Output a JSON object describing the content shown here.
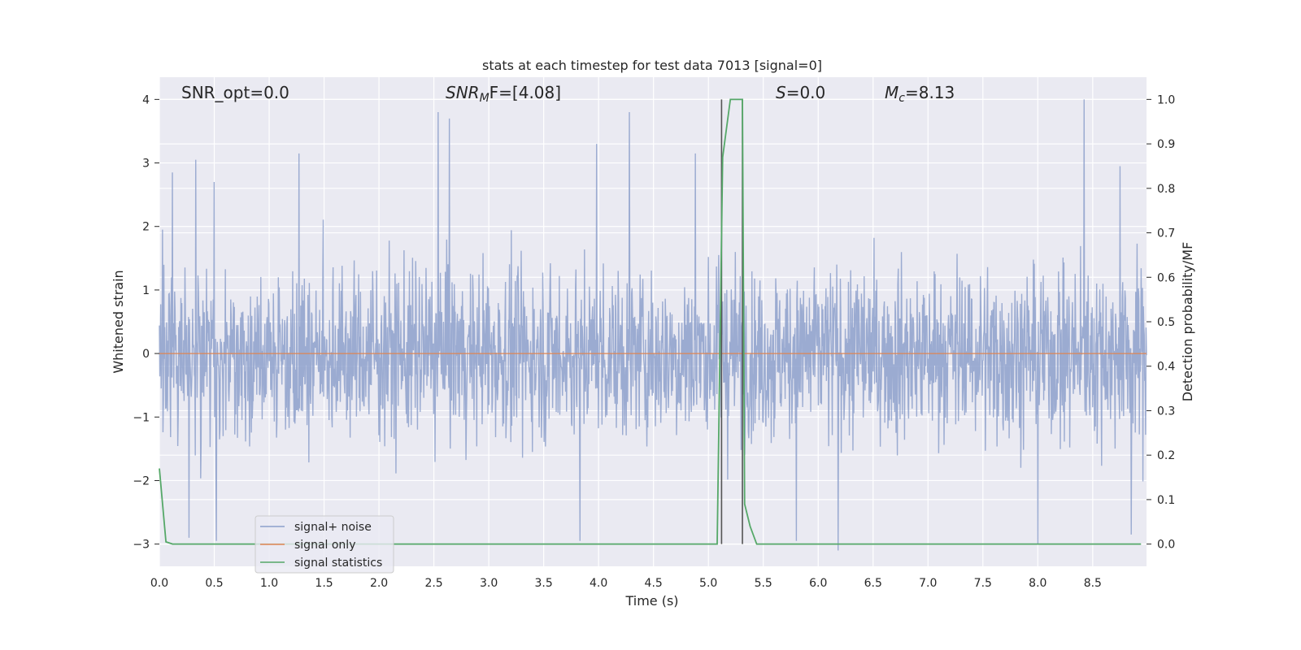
{
  "chart_data": {
    "type": "line",
    "title": "stats at each timestep for test data 7013 [signal=0]",
    "xlabel": "Time (s)",
    "ylabel_left": "Whitened strain",
    "ylabel_right": "Detection probability/MF",
    "xlim": [
      0.0,
      8.99
    ],
    "ylim_left": [
      -3.35,
      4.35
    ],
    "ylim_right": [
      -0.05,
      1.05
    ],
    "x_ticks": [
      "0.0",
      "0.5",
      "1.0",
      "1.5",
      "2.0",
      "2.5",
      "3.0",
      "3.5",
      "4.0",
      "4.5",
      "5.0",
      "5.5",
      "6.0",
      "6.5",
      "7.0",
      "7.5",
      "8.0",
      "8.5"
    ],
    "y_left_ticks": [
      "4",
      "3",
      "2",
      "1",
      "0",
      "−1",
      "−2",
      "−3"
    ],
    "y_right_ticks": [
      "1.0",
      "0.9",
      "0.8",
      "0.7",
      "0.6",
      "0.5",
      "0.4",
      "0.3",
      "0.2",
      "0.1",
      "0.0"
    ],
    "grid": true,
    "legend_location": "lower-left",
    "annotations": {
      "snr_opt": "SNR_opt=0.0",
      "snr_mf_name": "SNR",
      "snr_mf_sub": "M",
      "snr_mf_rest": "F=[4.08]",
      "s_name": "S",
      "s_rest": "=0.0",
      "mc_name": "M",
      "mc_sub": "c",
      "mc_rest": "=8.13"
    },
    "vlines_x": [
      5.12,
      5.31
    ],
    "series": [
      {
        "name": "signal+ noise",
        "color": "#8da0cb",
        "note_values": "dense gaussian-like noise, amplitude mostly within [-2.5, 3.0], peaks near 4 at t=8.42",
        "peaks": [
          {
            "x": 0.03,
            "y": 1.95
          },
          {
            "x": 0.12,
            "y": 2.85
          },
          {
            "x": 0.33,
            "y": 3.05
          },
          {
            "x": 0.5,
            "y": 2.7
          },
          {
            "x": 1.27,
            "y": 3.15
          },
          {
            "x": 2.54,
            "y": 3.8
          },
          {
            "x": 2.64,
            "y": 3.7
          },
          {
            "x": 3.98,
            "y": 3.3
          },
          {
            "x": 4.28,
            "y": 3.8
          },
          {
            "x": 4.88,
            "y": 3.15
          },
          {
            "x": 8.42,
            "y": 4.0
          },
          {
            "x": 8.75,
            "y": 2.95
          },
          {
            "x": 0.27,
            "y": -2.9
          },
          {
            "x": 0.52,
            "y": -2.95
          },
          {
            "x": 3.83,
            "y": -2.95
          },
          {
            "x": 5.8,
            "y": -2.95
          },
          {
            "x": 6.18,
            "y": -3.1
          },
          {
            "x": 8.0,
            "y": -3.0
          },
          {
            "x": 8.85,
            "y": -2.85
          }
        ]
      },
      {
        "name": "signal only",
        "color": "#dd8452",
        "x": [
          0.0,
          8.99
        ],
        "y": [
          0.0,
          0.0
        ]
      },
      {
        "name": "signal statistics",
        "color": "#55a868",
        "axis": "right",
        "x": [
          0.0,
          0.06,
          0.12,
          5.05,
          5.08,
          5.13,
          5.2,
          5.31,
          5.33,
          5.38,
          5.44,
          8.94
        ],
        "y": [
          0.17,
          0.005,
          0.0,
          0.0,
          0.0,
          0.87,
          1.0,
          1.0,
          0.09,
          0.04,
          0.0,
          0.0
        ]
      }
    ]
  }
}
